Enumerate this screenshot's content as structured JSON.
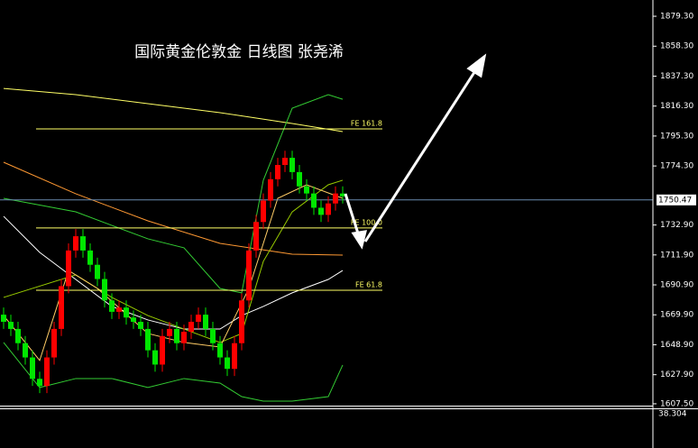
{
  "chart_data": {
    "type": "candlestick",
    "title": "国际黄金伦敦金 日线图 张尧浠",
    "ylim": [
      1606.2,
      1890.7
    ],
    "yticks": [
      {
        "value": 1879.3,
        "label": "1879.30"
      },
      {
        "value": 1858.3,
        "label": "1858.30"
      },
      {
        "value": 1837.3,
        "label": "1837.30"
      },
      {
        "value": 1816.3,
        "label": "1816.30"
      },
      {
        "value": 1795.3,
        "label": "1795.30"
      },
      {
        "value": 1774.3,
        "label": "1774.30"
      },
      {
        "value": 1732.9,
        "label": "1732.90"
      },
      {
        "value": 1711.9,
        "label": "1711.90"
      },
      {
        "value": 1690.9,
        "label": "1690.90"
      },
      {
        "value": 1669.9,
        "label": "1669.90"
      },
      {
        "value": 1648.9,
        "label": "1648.90"
      },
      {
        "value": 1627.9,
        "label": "1627.90"
      },
      {
        "value": 1607.5,
        "label": "1607.50"
      }
    ],
    "up_color": "#ff0000",
    "down_color": "#00e600",
    "open": [
      1670,
      1665,
      1660,
      1650,
      1640,
      1625,
      1620,
      1640,
      1660,
      1690,
      1715,
      1725,
      1715,
      1705,
      1695,
      1680,
      1672,
      1675,
      1668,
      1665,
      1660,
      1645,
      1635,
      1655,
      1660,
      1650,
      1658,
      1665,
      1670,
      1660,
      1650,
      1640,
      1632,
      1650,
      1680,
      1715,
      1735,
      1750,
      1765,
      1775,
      1780,
      1770,
      1760,
      1755,
      1745,
      1740,
      1748,
      1755
    ],
    "high": [
      1675,
      1670,
      1665,
      1655,
      1645,
      1630,
      1645,
      1665,
      1695,
      1720,
      1730,
      1730,
      1720,
      1710,
      1700,
      1685,
      1680,
      1680,
      1673,
      1670,
      1665,
      1650,
      1660,
      1665,
      1665,
      1663,
      1670,
      1675,
      1675,
      1665,
      1655,
      1645,
      1655,
      1685,
      1720,
      1740,
      1755,
      1770,
      1780,
      1785,
      1785,
      1775,
      1765,
      1760,
      1750,
      1753,
      1760,
      1760
    ],
    "low": [
      1660,
      1655,
      1645,
      1635,
      1620,
      1615,
      1615,
      1635,
      1655,
      1685,
      1710,
      1710,
      1700,
      1690,
      1675,
      1667,
      1667,
      1663,
      1660,
      1655,
      1640,
      1630,
      1630,
      1650,
      1645,
      1645,
      1653,
      1660,
      1655,
      1645,
      1635,
      1627,
      1627,
      1645,
      1675,
      1710,
      1730,
      1745,
      1760,
      1770,
      1765,
      1755,
      1750,
      1740,
      1735,
      1735,
      1743,
      1748
    ],
    "close": [
      1665,
      1660,
      1650,
      1640,
      1625,
      1620,
      1640,
      1660,
      1690,
      1715,
      1725,
      1715,
      1705,
      1695,
      1680,
      1672,
      1675,
      1668,
      1665,
      1660,
      1645,
      1635,
      1655,
      1660,
      1650,
      1658,
      1665,
      1670,
      1660,
      1650,
      1640,
      1632,
      1650,
      1680,
      1715,
      1735,
      1750,
      1765,
      1775,
      1780,
      1770,
      1760,
      1755,
      1745,
      1740,
      1748,
      1755,
      1753
    ],
    "overlays": [
      {
        "color": "#ffff66",
        "x": [
          0,
          10,
          20,
          30,
          40,
          47
        ],
        "values": [
          1828.7,
          1824.3,
          1818.0,
          1811.7,
          1804.1,
          1798.4
        ]
      },
      {
        "color": "#ff9933",
        "x": [
          0,
          10,
          20,
          30,
          40,
          47
        ],
        "values": [
          1776.9,
          1754.8,
          1735.8,
          1720.0,
          1712.4,
          1711.8
        ]
      },
      {
        "color": "#33cc33",
        "x": [
          0,
          10,
          15,
          20,
          25,
          30,
          33,
          36,
          40,
          45,
          47
        ],
        "values": [
          1751.6,
          1742.1,
          1732.6,
          1723.2,
          1716.9,
          1688.4,
          1685.3,
          1764.3,
          1814.8,
          1824.3,
          1821.1
        ]
      },
      {
        "color": "#33cc33",
        "x": [
          0,
          5,
          10,
          15,
          20,
          25,
          30,
          33,
          36,
          40,
          45,
          47
        ],
        "values": [
          1650.5,
          1618.9,
          1625.2,
          1625.2,
          1618.9,
          1625.2,
          1622.0,
          1612.5,
          1609.4,
          1609.4,
          1612.5,
          1634.7
        ]
      },
      {
        "color": "#ffffff",
        "x": [
          0,
          5,
          10,
          15,
          20,
          25,
          30,
          33,
          36,
          40,
          45,
          47
        ],
        "values": [
          1739.0,
          1713.7,
          1694.7,
          1675.8,
          1666.3,
          1659.9,
          1659.9,
          1669.4,
          1675.8,
          1685.3,
          1694.7,
          1701.0
        ]
      },
      {
        "color": "#99cc00",
        "x": [
          0,
          10,
          15,
          20,
          30,
          33,
          36,
          40,
          45,
          47
        ],
        "values": [
          1682.1,
          1697.9,
          1682.1,
          1669.4,
          1650.5,
          1656.8,
          1707.4,
          1742.1,
          1761.1,
          1764.3
        ]
      },
      {
        "color": "#ffcc66",
        "x": [
          0,
          5,
          9,
          13,
          20,
          25,
          30,
          34,
          38,
          42,
          47
        ],
        "values": [
          1669.4,
          1637.9,
          1701.0,
          1688.4,
          1656.8,
          1650.5,
          1647.3,
          1688.4,
          1751.6,
          1761.1,
          1751.6
        ]
      }
    ],
    "levels": [
      {
        "label": "FE 161.8",
        "value": 1800.3
      },
      {
        "label": "FE 100.0",
        "value": 1730.8
      },
      {
        "label": "FE 61.8",
        "value": 1687.1
      }
    ],
    "current_price": {
      "value": 1750.47,
      "label": "1750.47"
    },
    "indicator_label": "38.304"
  }
}
